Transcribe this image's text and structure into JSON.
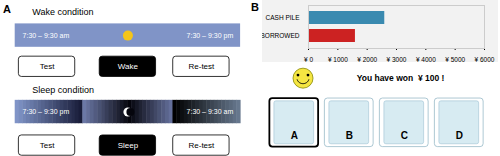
{
  "chart_data": {
    "type": "bar",
    "orientation": "horizontal",
    "categories": [
      "BORROWED",
      "CASH PILE"
    ],
    "values": [
      1600,
      2600
    ],
    "colors": [
      "#cc2222",
      "#3a8ab0"
    ],
    "xlim": [
      0,
      6000
    ],
    "xticks": [
      {
        "value": 0,
        "label": "¥ 0"
      },
      {
        "value": 1000,
        "label": "¥ 1000"
      },
      {
        "value": 2000,
        "label": "¥ 2000"
      },
      {
        "value": 3000,
        "label": "¥ 3000"
      },
      {
        "value": 4000,
        "label": "¥ 4000"
      },
      {
        "value": 5000,
        "label": "¥ 5000"
      },
      {
        "value": 6000,
        "label": "¥ 6000"
      }
    ],
    "annotations": [
      "A",
      "Wake condition",
      "7:30 – 9:30 am",
      "7:30 – 9:30 pm",
      "Test",
      "Wake",
      "Re-test",
      "Sleep condition",
      "7:30 – 9:30 pm",
      "7:30 – 9:30 am",
      "Test",
      "Sleep",
      "Re-test",
      "B",
      "You have won  ¥ 100 !",
      "A",
      "B",
      "C",
      "D"
    ]
  }
}
